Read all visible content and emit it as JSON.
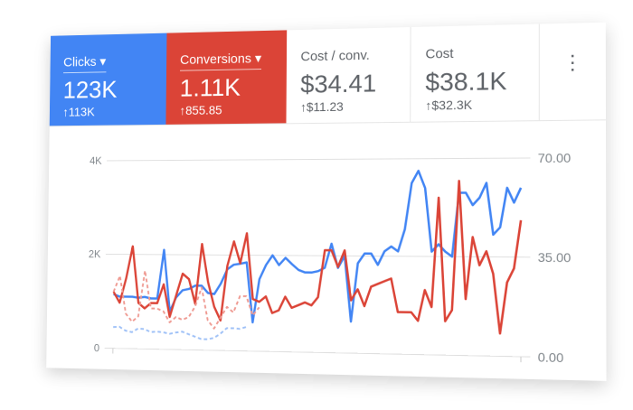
{
  "tiles": [
    {
      "label": "Clicks",
      "value": "123K",
      "delta": "113K",
      "dropdown": true,
      "color": "#4285f4"
    },
    {
      "label": "Conversions",
      "value": "1.11K",
      "delta": "855.85",
      "dropdown": true,
      "color": "#db4437"
    },
    {
      "label": "Cost / conv.",
      "value": "$34.41",
      "delta": "$11.23",
      "dropdown": false
    },
    {
      "label": "Cost",
      "value": "$38.1K",
      "delta": "$32.3K",
      "dropdown": false
    }
  ],
  "icons": {
    "more": "more-vert-icon",
    "delta": "arrow-up-icon",
    "dropdown": "caret-down-icon"
  },
  "chart_data": {
    "type": "line",
    "left_axis": {
      "ticks": [
        "0",
        "2K",
        "4K"
      ],
      "range": [
        0,
        4000
      ]
    },
    "right_axis": {
      "ticks": [
        "0.00",
        "35.00",
        "70.00"
      ],
      "range": [
        0,
        70
      ]
    },
    "grid": true,
    "series": [
      {
        "color": "#4285f4",
        "axis": "left",
        "style": "solid",
        "values": [
          1150,
          1100,
          1100,
          1100,
          1080,
          1100,
          1070,
          1070,
          2100,
          800,
          1100,
          1250,
          1280,
          1350,
          1350,
          1200,
          1180,
          1400,
          1700,
          1800,
          1820,
          1850,
          600,
          1500,
          1800,
          2000,
          1800,
          1950,
          1820,
          1700,
          1650,
          1650,
          1680,
          1750,
          2250,
          1750,
          2000,
          650,
          1850,
          2050,
          2050,
          1820,
          2100,
          2200,
          2100,
          2550,
          3500,
          3750,
          3400,
          2100,
          2250,
          2100,
          2000,
          3300,
          3300,
          3050,
          3200,
          3500,
          2450,
          2600,
          3400,
          3100,
          3400
        ]
      },
      {
        "color": "#db4437",
        "axis": "right",
        "style": "solid",
        "values": [
          21,
          17,
          26,
          38,
          17,
          15,
          17,
          17,
          24,
          12,
          20,
          28,
          26,
          17,
          39,
          25,
          16,
          11,
          31,
          40,
          32,
          43,
          19,
          18,
          20,
          14,
          15,
          20,
          16,
          17,
          18,
          17,
          20,
          37,
          37,
          31,
          37,
          19,
          23,
          17,
          24,
          25,
          26,
          27,
          15,
          15,
          15,
          12,
          23,
          17,
          56,
          12,
          16,
          62,
          20,
          42,
          32,
          37,
          29,
          8,
          26,
          31,
          48
        ]
      },
      {
        "color": "#ef9a92",
        "axis": "right",
        "style": "dashed",
        "values": [
          21,
          27,
          13,
          10,
          12,
          29,
          15,
          15,
          14,
          10,
          12,
          11,
          12,
          16,
          23,
          11,
          8,
          12,
          16,
          14,
          20,
          20,
          13,
          16
        ]
      },
      {
        "color": "#9fc1f7",
        "axis": "left",
        "style": "dashed",
        "values": [
          450,
          460,
          380,
          350,
          430,
          420,
          360,
          370,
          360,
          330,
          360,
          380,
          330,
          280,
          230,
          230,
          260,
          350,
          470,
          470,
          460,
          500
        ]
      }
    ]
  }
}
